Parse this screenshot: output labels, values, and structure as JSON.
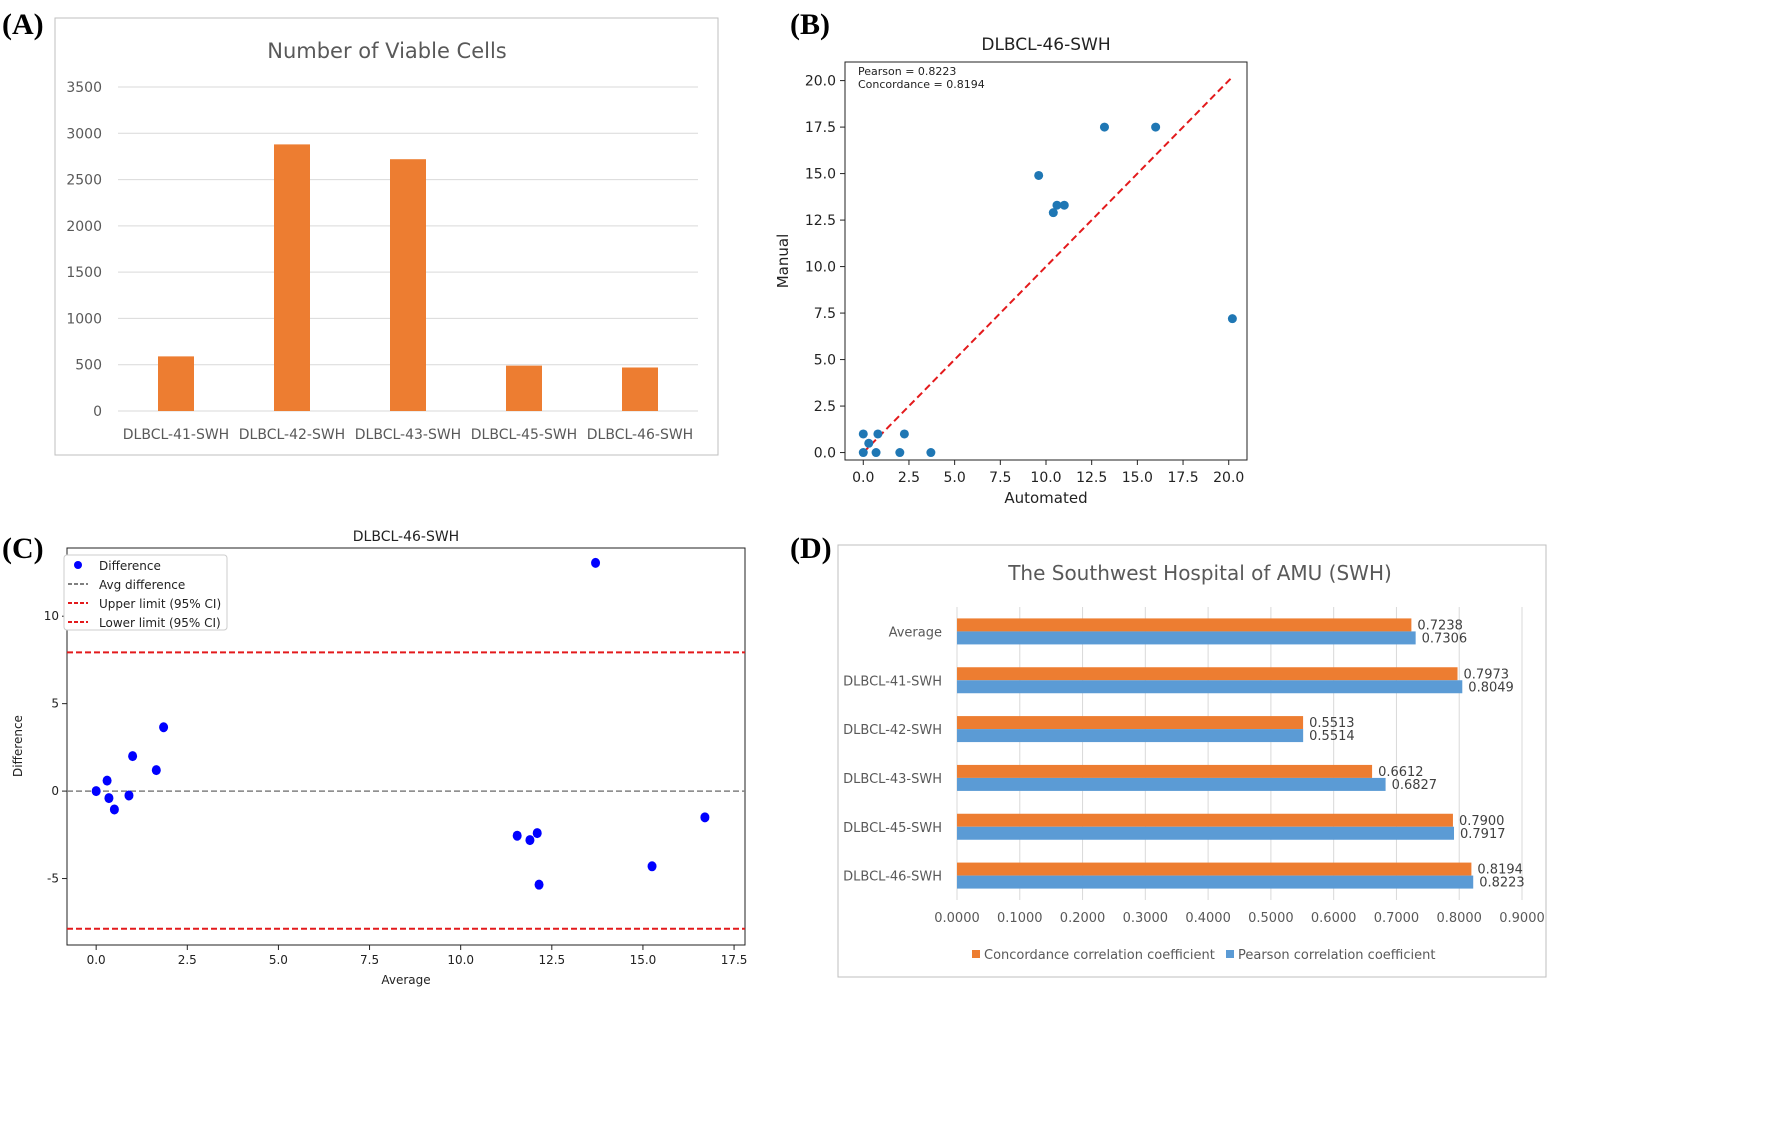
{
  "panel_labels": [
    "(A)",
    "(B)",
    "(C)",
    "(D)"
  ],
  "chart_data": [
    {
      "type": "bar",
      "title": "Number of Viable Cells",
      "categories": [
        "DLBCL-41-SWH",
        "DLBCL-42-SWH",
        "DLBCL-43-SWH",
        "DLBCL-45-SWH",
        "DLBCL-46-SWH"
      ],
      "values": [
        590,
        2880,
        2720,
        490,
        470
      ],
      "ylim": [
        0,
        3500
      ],
      "yticks": [
        0,
        500,
        1000,
        1500,
        2000,
        2500,
        3000,
        3500
      ],
      "grid": true,
      "color": "#ED7D31"
    },
    {
      "type": "scatter",
      "title": "DLBCL-46-SWH",
      "xlabel": "Automated",
      "ylabel": "Manual",
      "annotations": [
        "Pearson = 0.8223",
        "Concordance = 0.8194"
      ],
      "xlim": [
        -1,
        21
      ],
      "ylim": [
        -0.4,
        21
      ],
      "xticks": [
        0.0,
        2.5,
        5.0,
        7.5,
        10.0,
        12.5,
        15.0,
        17.5,
        20.0
      ],
      "yticks": [
        0.0,
        2.5,
        5.0,
        7.5,
        10.0,
        12.5,
        15.0,
        17.5,
        20.0
      ],
      "points": [
        [
          0,
          1.0
        ],
        [
          0,
          0
        ],
        [
          0.3,
          0.5
        ],
        [
          0.7,
          0
        ],
        [
          0.8,
          1.0
        ],
        [
          2.0,
          0
        ],
        [
          2.25,
          1.0
        ],
        [
          3.7,
          0
        ],
        [
          9.6,
          14.9
        ],
        [
          10.4,
          12.9
        ],
        [
          10.6,
          13.3
        ],
        [
          11.0,
          13.3
        ],
        [
          13.2,
          17.5
        ],
        [
          16.0,
          17.5
        ],
        [
          20.2,
          7.2
        ]
      ],
      "reference_line": [
        [
          0,
          0
        ],
        [
          20.2,
          20.2
        ]
      ],
      "point_color": "#1f77b4",
      "line_color": "#e31a1c"
    },
    {
      "type": "scatter",
      "title": "DLBCL-46-SWH",
      "xlabel": "Average",
      "ylabel": "Difference",
      "xlim": [
        -0.8,
        17.8
      ],
      "ylim": [
        -8.8,
        13.9
      ],
      "xticks": [
        0.0,
        2.5,
        5.0,
        7.5,
        10.0,
        12.5,
        15.0,
        17.5
      ],
      "yticks": [
        -5,
        0,
        5,
        10
      ],
      "legend": [
        "Difference",
        "Avg difference",
        "Upper limit (95% CI)",
        "Lower limit (95% CI)"
      ],
      "legend_position": "top-left",
      "points": [
        [
          0,
          0
        ],
        [
          0.3,
          0.6
        ],
        [
          0.35,
          -0.4
        ],
        [
          0.5,
          -1.05
        ],
        [
          0.9,
          -0.25
        ],
        [
          1.0,
          2.0
        ],
        [
          1.65,
          1.2
        ],
        [
          1.85,
          3.65
        ],
        [
          11.55,
          -2.55
        ],
        [
          11.9,
          -2.8
        ],
        [
          12.1,
          -2.4
        ],
        [
          12.15,
          -5.35
        ],
        [
          13.7,
          13.05
        ],
        [
          15.25,
          -4.3
        ],
        [
          16.7,
          -1.5
        ]
      ],
      "avg_difference": 0,
      "upper_limit": 7.93,
      "lower_limit": -7.87,
      "point_color": "#0000ff"
    },
    {
      "type": "bar",
      "orientation": "horizontal",
      "title": "The Southwest Hospital of AMU (SWH)",
      "categories": [
        "Average",
        "DLBCL-41-SWH",
        "DLBCL-42-SWH",
        "DLBCL-43-SWH",
        "DLBCL-45-SWH",
        "DLBCL-46-SWH"
      ],
      "series": [
        {
          "name": "Concordance correlation coefficient",
          "color": "#ED7D31",
          "values": [
            0.7238,
            0.7973,
            0.5513,
            0.6612,
            0.79,
            0.8194
          ],
          "labels": [
            "0.7238",
            "0.7973",
            "0.5513",
            "0.6612",
            "0.7900",
            "0.8194"
          ]
        },
        {
          "name": "Pearson correlation coefficient",
          "color": "#5B9BD5",
          "values": [
            0.7306,
            0.8049,
            0.5514,
            0.6827,
            0.7917,
            0.8223
          ],
          "labels": [
            "0.7306",
            "0.8049",
            "0.5514",
            "0.6827",
            "0.7917",
            "0.8223"
          ]
        }
      ],
      "xlim": [
        0,
        0.9
      ],
      "xticks": [
        "0.0000",
        "0.1000",
        "0.2000",
        "0.3000",
        "0.4000",
        "0.5000",
        "0.6000",
        "0.7000",
        "0.8000",
        "0.9000"
      ],
      "grid": true,
      "legend_position": "bottom"
    }
  ]
}
